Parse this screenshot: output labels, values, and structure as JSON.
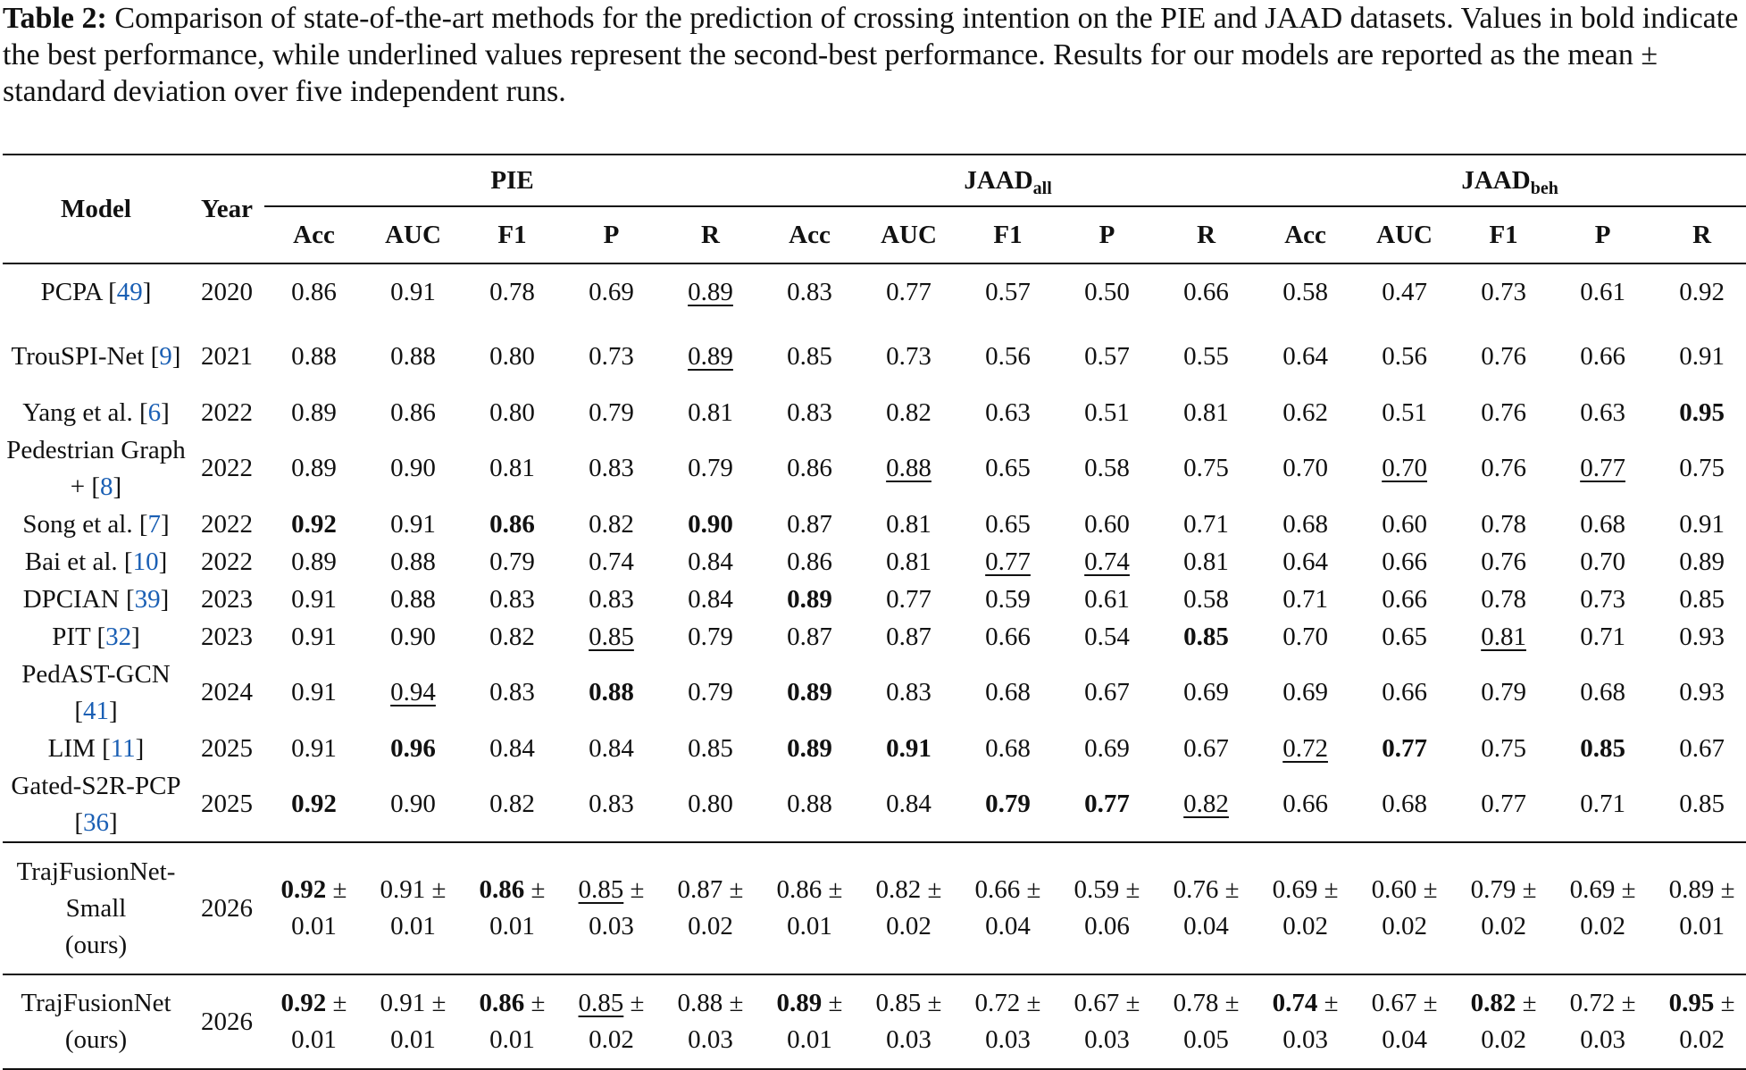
{
  "caption": {
    "label": "Table 2:",
    "text": "Comparison of state-of-the-art methods for the prediction of crossing intention on the PIE and JAAD datasets. Values in bold indicate the best performance, while underlined values represent the second-best performance. Results for our models are reported as the mean ± standard deviation over five independent runs."
  },
  "header": {
    "model": "Model",
    "year": "Year",
    "groups": [
      {
        "name": "PIE",
        "sub": ""
      },
      {
        "name": "JAAD",
        "sub": "all"
      },
      {
        "name": "JAAD",
        "sub": "beh"
      }
    ],
    "metrics": [
      "Acc",
      "AUC",
      "F1",
      "P",
      "R"
    ]
  },
  "rows": [
    {
      "model": "PCPA",
      "ref": "49",
      "year": "2020",
      "values": [
        "0.86",
        "0.91",
        "0.78",
        "0.69",
        "0.89",
        "0.83",
        "0.77",
        "0.57",
        "0.50",
        "0.66",
        "0.58",
        "0.47",
        "0.73",
        "0.61",
        "0.92"
      ],
      "bold": [],
      "underline": [
        4
      ]
    },
    {
      "model": "TrouSPI-Net",
      "ref": "9",
      "year": "2021",
      "values": [
        "0.88",
        "0.88",
        "0.80",
        "0.73",
        "0.89",
        "0.85",
        "0.73",
        "0.56",
        "0.57",
        "0.55",
        "0.64",
        "0.56",
        "0.76",
        "0.66",
        "0.91"
      ],
      "bold": [],
      "underline": [
        4
      ]
    },
    {
      "model": "Yang et al.",
      "ref": "6",
      "year": "2022",
      "values": [
        "0.89",
        "0.86",
        "0.80",
        "0.79",
        "0.81",
        "0.83",
        "0.82",
        "0.63",
        "0.51",
        "0.81",
        "0.62",
        "0.51",
        "0.76",
        "0.63",
        "0.95"
      ],
      "bold": [
        14
      ],
      "underline": []
    },
    {
      "model": "Pedestrian Graph +",
      "ref": "8",
      "year": "2022",
      "values": [
        "0.89",
        "0.90",
        "0.81",
        "0.83",
        "0.79",
        "0.86",
        "0.88",
        "0.65",
        "0.58",
        "0.75",
        "0.70",
        "0.70",
        "0.76",
        "0.77",
        "0.75"
      ],
      "bold": [],
      "underline": [
        6,
        11,
        13
      ]
    },
    {
      "model": "Song et al.",
      "ref": "7",
      "year": "2022",
      "values": [
        "0.92",
        "0.91",
        "0.86",
        "0.82",
        "0.90",
        "0.87",
        "0.81",
        "0.65",
        "0.60",
        "0.71",
        "0.68",
        "0.60",
        "0.78",
        "0.68",
        "0.91"
      ],
      "bold": [
        0,
        2,
        4
      ],
      "underline": []
    },
    {
      "model": "Bai et al.",
      "ref": "10",
      "year": "2022",
      "values": [
        "0.89",
        "0.88",
        "0.79",
        "0.74",
        "0.84",
        "0.86",
        "0.81",
        "0.77",
        "0.74",
        "0.81",
        "0.64",
        "0.66",
        "0.76",
        "0.70",
        "0.89"
      ],
      "bold": [],
      "underline": [
        7,
        8
      ]
    },
    {
      "model": "DPCIAN",
      "ref": "39",
      "year": "2023",
      "values": [
        "0.91",
        "0.88",
        "0.83",
        "0.83",
        "0.84",
        "0.89",
        "0.77",
        "0.59",
        "0.61",
        "0.58",
        "0.71",
        "0.66",
        "0.78",
        "0.73",
        "0.85"
      ],
      "bold": [
        5
      ],
      "underline": []
    },
    {
      "model": "PIT",
      "ref": "32",
      "year": "2023",
      "values": [
        "0.91",
        "0.90",
        "0.82",
        "0.85",
        "0.79",
        "0.87",
        "0.87",
        "0.66",
        "0.54",
        "0.85",
        "0.70",
        "0.65",
        "0.81",
        "0.71",
        "0.93"
      ],
      "bold": [
        9
      ],
      "underline": [
        3,
        12
      ]
    },
    {
      "model": "PedAST-GCN",
      "ref": "41",
      "year": "2024",
      "values": [
        "0.91",
        "0.94",
        "0.83",
        "0.88",
        "0.79",
        "0.89",
        "0.83",
        "0.68",
        "0.67",
        "0.69",
        "0.69",
        "0.66",
        "0.79",
        "0.68",
        "0.93"
      ],
      "bold": [
        3,
        5
      ],
      "underline": [
        1
      ]
    },
    {
      "model": "LIM",
      "ref": "11",
      "year": "2025",
      "values": [
        "0.91",
        "0.96",
        "0.84",
        "0.84",
        "0.85",
        "0.89",
        "0.91",
        "0.68",
        "0.69",
        "0.67",
        "0.72",
        "0.77",
        "0.75",
        "0.85",
        "0.67"
      ],
      "bold": [
        1,
        5,
        6,
        11,
        13
      ],
      "underline": [
        10
      ]
    },
    {
      "model": "Gated-S2R-PCP",
      "ref": "36",
      "year": "2025",
      "values": [
        "0.92",
        "0.90",
        "0.82",
        "0.83",
        "0.80",
        "0.88",
        "0.84",
        "0.79",
        "0.77",
        "0.82",
        "0.66",
        "0.68",
        "0.77",
        "0.71",
        "0.85"
      ],
      "bold": [
        0,
        7,
        8
      ],
      "underline": [
        9
      ]
    }
  ],
  "ours": [
    {
      "model_lines": [
        "TrajFusionNet-",
        "Small",
        "(ours)"
      ],
      "year": "2026",
      "means": [
        "0.92",
        "0.91",
        "0.86",
        "0.85",
        "0.87",
        "0.86",
        "0.82",
        "0.66",
        "0.59",
        "0.76",
        "0.69",
        "0.60",
        "0.79",
        "0.69",
        "0.89"
      ],
      "stds": [
        "0.01",
        "0.01",
        "0.01",
        "0.03",
        "0.02",
        "0.01",
        "0.02",
        "0.04",
        "0.06",
        "0.04",
        "0.02",
        "0.02",
        "0.02",
        "0.02",
        "0.01"
      ],
      "bold": [
        0,
        2
      ],
      "underline": [
        3
      ]
    },
    {
      "model_lines": [
        "TrajFusionNet",
        "(ours)"
      ],
      "year": "2026",
      "means": [
        "0.92",
        "0.91",
        "0.86",
        "0.85",
        "0.88",
        "0.89",
        "0.85",
        "0.72",
        "0.67",
        "0.78",
        "0.74",
        "0.67",
        "0.82",
        "0.72",
        "0.95"
      ],
      "stds": [
        "0.01",
        "0.01",
        "0.01",
        "0.02",
        "0.03",
        "0.01",
        "0.03",
        "0.03",
        "0.03",
        "0.05",
        "0.03",
        "0.04",
        "0.02",
        "0.03",
        "0.02"
      ],
      "bold": [
        0,
        2,
        5,
        10,
        12,
        14
      ],
      "underline": [
        3
      ]
    }
  ],
  "colors": {
    "text": "#111111",
    "reference_link": "#1a5fb4"
  }
}
